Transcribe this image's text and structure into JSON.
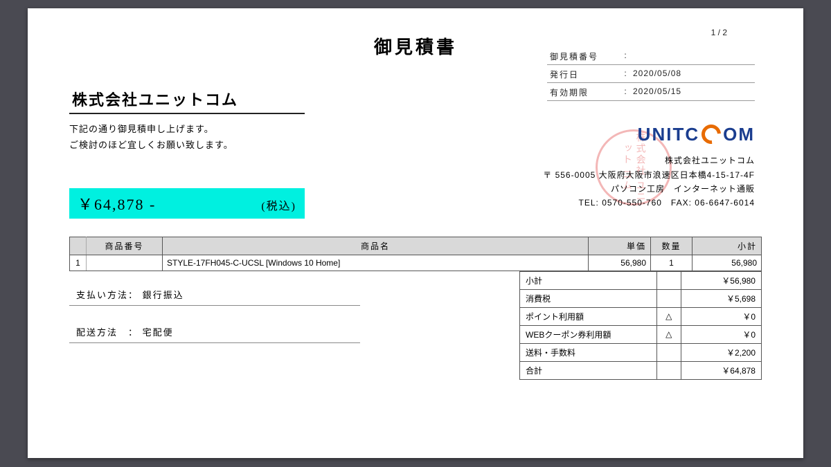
{
  "page_number": "1 / 2",
  "title": "御見積書",
  "meta": {
    "quote_no_label": "御見積番号",
    "quote_no_value": "",
    "issue_label": "発行日",
    "issue_value": "2020/05/08",
    "expiry_label": "有効期限",
    "expiry_value": "2020/05/15"
  },
  "recipient": "株式会社ユニットコム",
  "intro_line1": "下記の通り御見積申し上げます。",
  "intro_line2": "ご検討のほど宜しくお願い致します。",
  "company": {
    "logo_unit": "UNITC",
    "logo_om": "OM",
    "name": "株式会社ユニットコム",
    "address": "〒 556-0005 大阪府大阪市浪速区日本橋4-15-17-4F",
    "brand": "パソコン工房　インターネット通販",
    "contact": "TEL: 0570-550-760　FAX: 06-6647-6014"
  },
  "stamp_text": "株式会社\nユニット\nコム",
  "total": {
    "amount": "￥64,878 -",
    "tax_label": "(税込)"
  },
  "items_table": {
    "headers": {
      "code": "商品番号",
      "name": "商品名",
      "unit": "単価",
      "qty": "数量",
      "sub": "小計"
    },
    "rows": [
      {
        "idx": "1",
        "code": "",
        "name": "STYLE-17FH045-C-UCSL [Windows 10 Home]",
        "unit": "56,980",
        "qty": "1",
        "sub": "56,980"
      }
    ]
  },
  "payment": {
    "label": "支払い方法：",
    "value": "銀行振込"
  },
  "shipping": {
    "label": "配送方法　：",
    "value": "宅配便"
  },
  "summary": [
    {
      "label": "小計",
      "mark": "",
      "value": "￥56,980"
    },
    {
      "label": "消費税",
      "mark": "",
      "value": "￥5,698"
    },
    {
      "label": "ポイント利用額",
      "mark": "△",
      "value": "￥0"
    },
    {
      "label": "WEBクーポン券利用額",
      "mark": "△",
      "value": "￥0"
    },
    {
      "label": "送料・手数料",
      "mark": "",
      "value": "￥2,200"
    },
    {
      "label": "合計",
      "mark": "",
      "value": "￥64,878"
    }
  ],
  "colors": {
    "page_bg": "#ffffff",
    "body_bg": "#4a4a52",
    "highlight": "#00f0e0",
    "header_bg": "#d9d9d9",
    "border": "#555555",
    "logo_blue": "#1a3d8f",
    "logo_orange": "#e86b00",
    "stamp": "rgba(220,50,50,0.35)"
  }
}
